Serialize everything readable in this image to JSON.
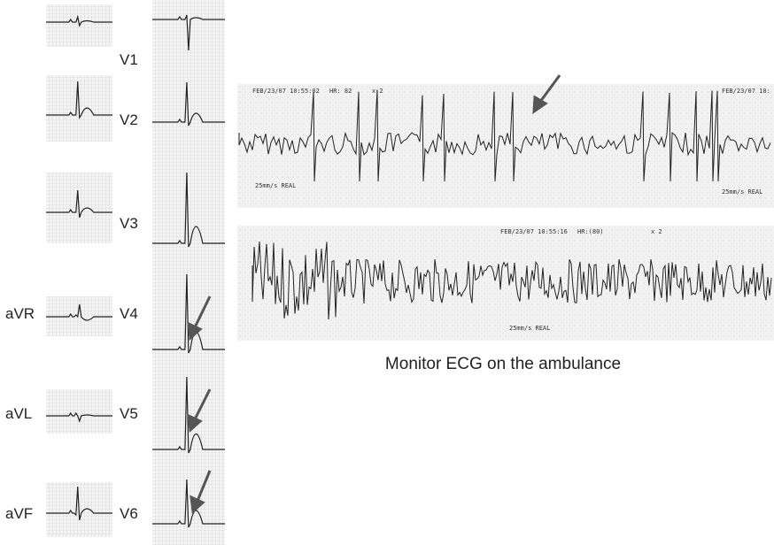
{
  "precordial_labels": [
    "V1",
    "V2",
    "V3",
    "V4",
    "V5",
    "V6"
  ],
  "limb_labels": [
    "aVR",
    "aVL",
    "aVF"
  ],
  "strips": [
    {
      "stamp": "FEB/23/07 10:55:02",
      "hr": "HR: 82",
      "gain": "x 2",
      "speed": "25mm/s REAL",
      "stamp_right": "FEB/23/07 10:"
    },
    {
      "stamp": "FEB/23/07 10:55:16",
      "hr": "HR:(80)",
      "gain": "x 2",
      "speed": "25mm/s REAL"
    }
  ],
  "caption": "Monitor ECG on the ambulance"
}
